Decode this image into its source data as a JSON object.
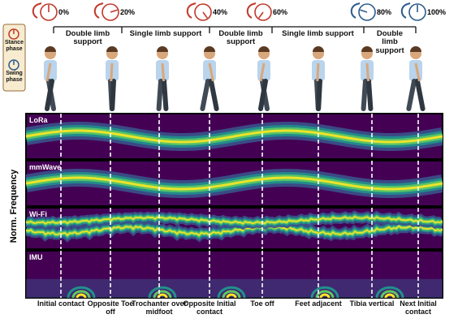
{
  "gait_percentages": [
    "0%",
    "20%",
    "40%",
    "60%",
    "80%",
    "100%"
  ],
  "phase_labels": [
    "Double limb support",
    "Single limb support",
    "Double limb support",
    "Single limb support",
    "Double limb support"
  ],
  "legend": {
    "stance": "Stance phase",
    "swing": "Swing phase"
  },
  "y_axis_label": "Norm. Frequency",
  "panels": [
    "LoRa",
    "mmWave",
    "Wi-Fi",
    "IMU"
  ],
  "events": [
    "Initial contact",
    "Opposite Toe off",
    "Trochanter over midfoot",
    "Opposite Initial contact",
    "Toe off",
    "Feet adjacent",
    "Tibia vertical",
    "Next Initial contact"
  ]
}
